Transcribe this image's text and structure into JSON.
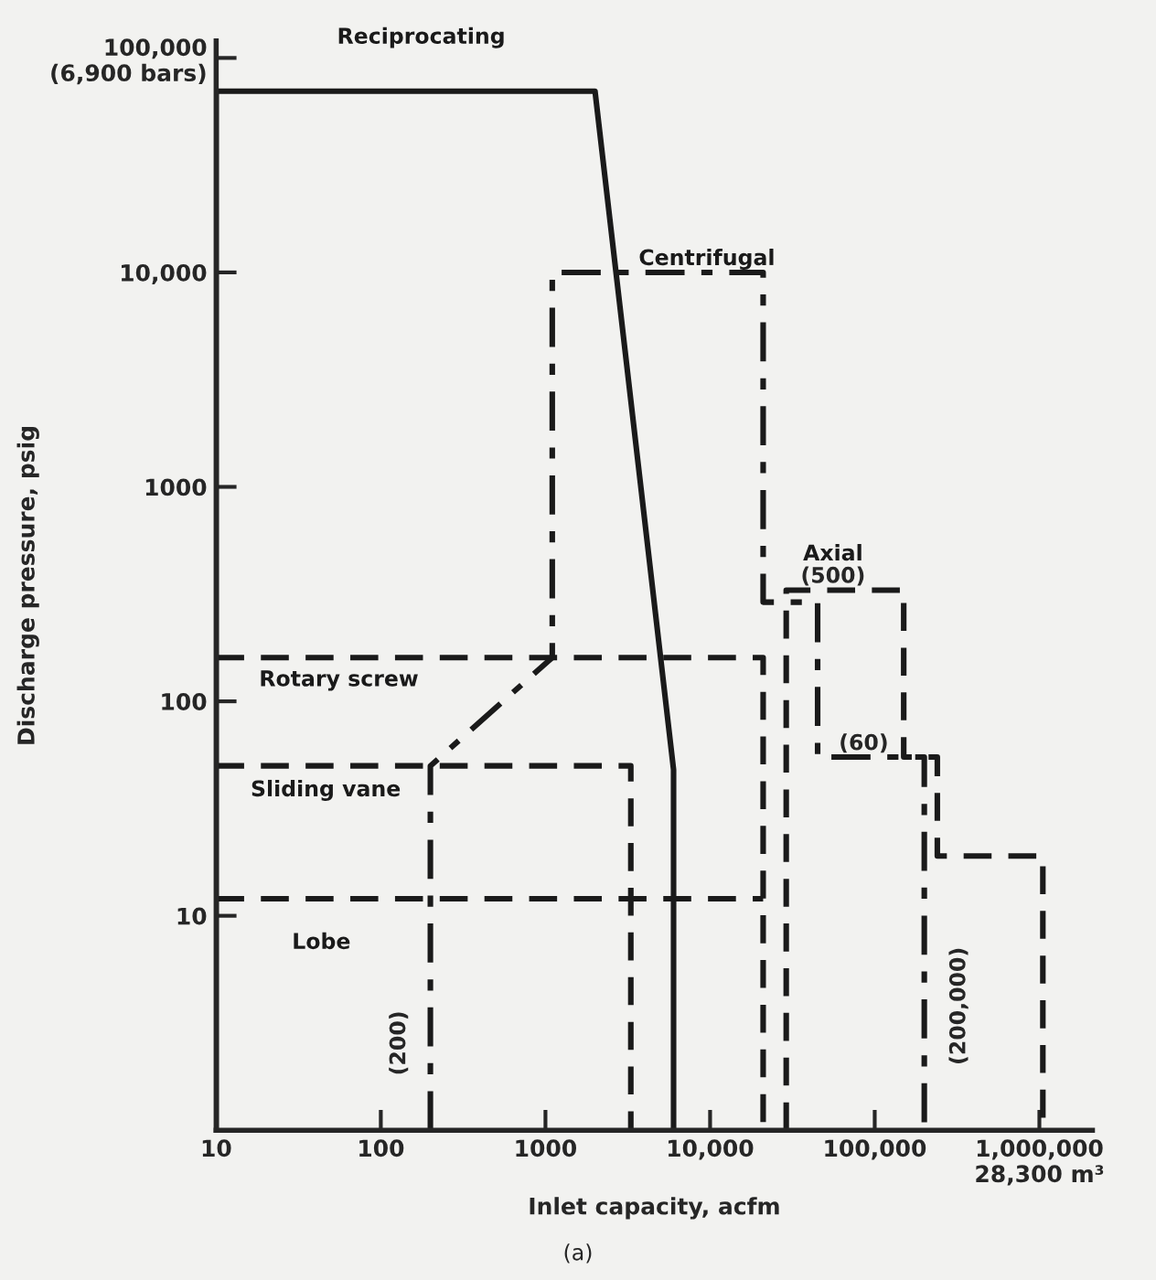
{
  "chart_data": {
    "type": "line",
    "xlabel": "Inlet capacity, acfm",
    "ylabel": "Discharge pressure, psig",
    "log": "xy",
    "xlim": [
      10,
      2100000
    ],
    "ylim": [
      1,
      120000
    ],
    "xticks": [
      10,
      100,
      1000,
      {
        "value": 10000,
        "label": "10,000"
      },
      {
        "value": 100000,
        "label": "100,000"
      },
      {
        "value": 1000000,
        "label": "1,000,000\n28,300 m³"
      }
    ],
    "yticks": [
      10,
      100,
      1000,
      {
        "value": 10000,
        "label": "10,000"
      },
      {
        "value": 100000,
        "label": "100,000\n(6,900 bars)"
      }
    ],
    "grid": false,
    "legend": false,
    "marker": "none",
    "series": [
      {
        "name": "Reciprocating",
        "color": "#1a1a1a",
        "line_style": "solid",
        "x": [
          10,
          10,
          2000,
          6000,
          6000
        ],
        "values": [
          1,
          70000,
          70000,
          48,
          1
        ]
      },
      {
        "name": "Centrifugal",
        "color": "#1a1a1a",
        "line_style": "dashdot",
        "x": [
          200,
          200,
          1100,
          1100,
          21000,
          21000,
          45000,
          45000,
          200000,
          200000
        ],
        "values": [
          1,
          50,
          160,
          10000,
          10000,
          290,
          290,
          55,
          55,
          1
        ]
      },
      {
        "name": "Axial",
        "color": "#1a1a1a",
        "line_style": "dashed",
        "x": [
          29000,
          29000,
          150000,
          150000,
          240000,
          240000,
          1050000,
          1050000
        ],
        "values": [
          1,
          330,
          330,
          55,
          55,
          19,
          19,
          1
        ]
      },
      {
        "name": "Rotary screw",
        "color": "#1a1a1a",
        "line_style": "dashed",
        "x": [
          10,
          21000,
          21000
        ],
        "values": [
          160,
          160,
          1
        ]
      },
      {
        "name": "Sliding vane",
        "color": "#1a1a1a",
        "line_style": "dashed",
        "x": [
          10,
          3300,
          3300
        ],
        "values": [
          50,
          50,
          1
        ]
      },
      {
        "name": "Lobe",
        "color": "#1a1a1a",
        "line_style": "dashed",
        "x": [
          10,
          21000
        ],
        "values": [
          12,
          12
        ]
      }
    ],
    "annotations": [
      "(500)",
      "(60)",
      "(200)",
      "(200,000)",
      "(a)"
    ]
  }
}
